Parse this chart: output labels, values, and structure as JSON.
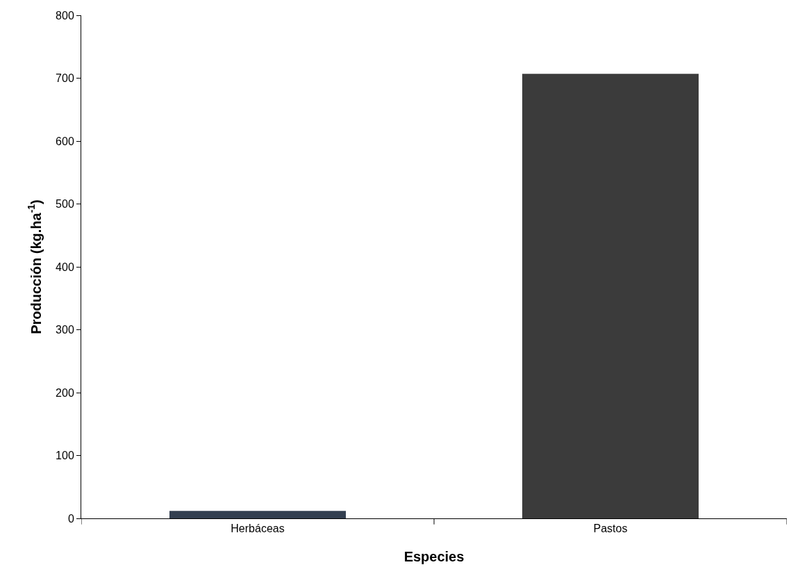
{
  "chart_data": {
    "type": "bar",
    "xlabel": "Especies",
    "ylabel": "Producción (kg.ha$^{-1}$)",
    "categories": [
      "Herbáceas",
      "Pastos"
    ],
    "values": [
      12,
      707
    ],
    "colors": [
      "#333f50",
      "#3b3b3b"
    ],
    "ylim": [
      0,
      800
    ],
    "yticks": [
      0,
      100,
      200,
      300,
      400,
      500,
      600,
      700,
      800
    ]
  }
}
